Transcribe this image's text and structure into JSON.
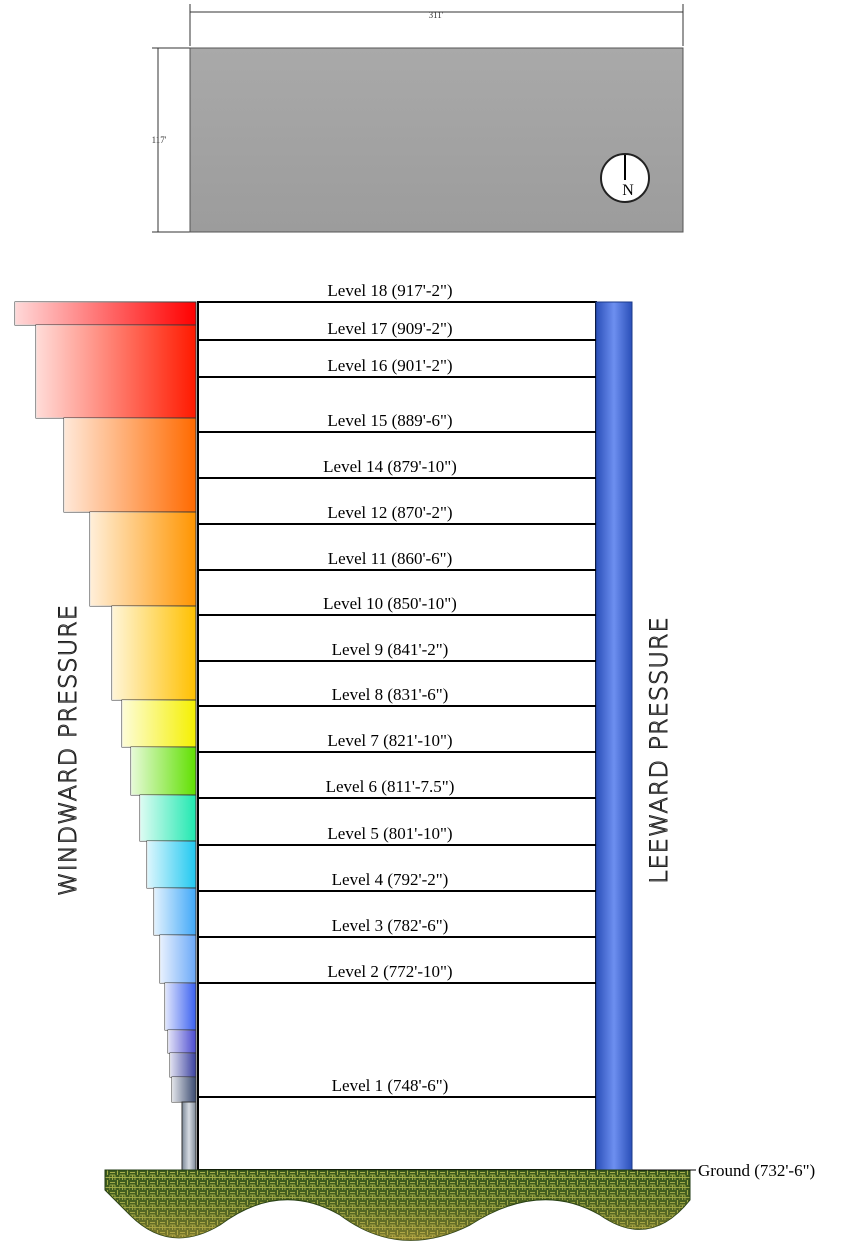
{
  "plan": {
    "width_label": "311'",
    "depth_label": "117'",
    "north": "N"
  },
  "windward_label": "WINDWARD PRESSURE",
  "leeward_label": "LEEWARD PRESSURE",
  "levels": [
    "Level 18 (917'-2\")",
    "Level 17 (909'-2\")",
    "Level 16 (901'-2\")",
    "Level 15 (889'-6\")",
    "Level 14 (879'-10\")",
    "Level 12 (870'-2\")",
    "Level 11 (860'-6\")",
    "Level 10 (850'-10\")",
    "Level 9 (841'-2\")",
    "Level 8 (831'-6\")",
    "Level 7 (821'-10\")",
    "Level 6 (811'-7.5\")",
    "Level 5 (801'-10\")",
    "Level 4 (792'-2\")",
    "Level 3 (782'-6\")",
    "Level 2 (772'-10\")",
    "Level 1 (748'-6\")"
  ],
  "ground": "Ground (732'-6\")"
}
